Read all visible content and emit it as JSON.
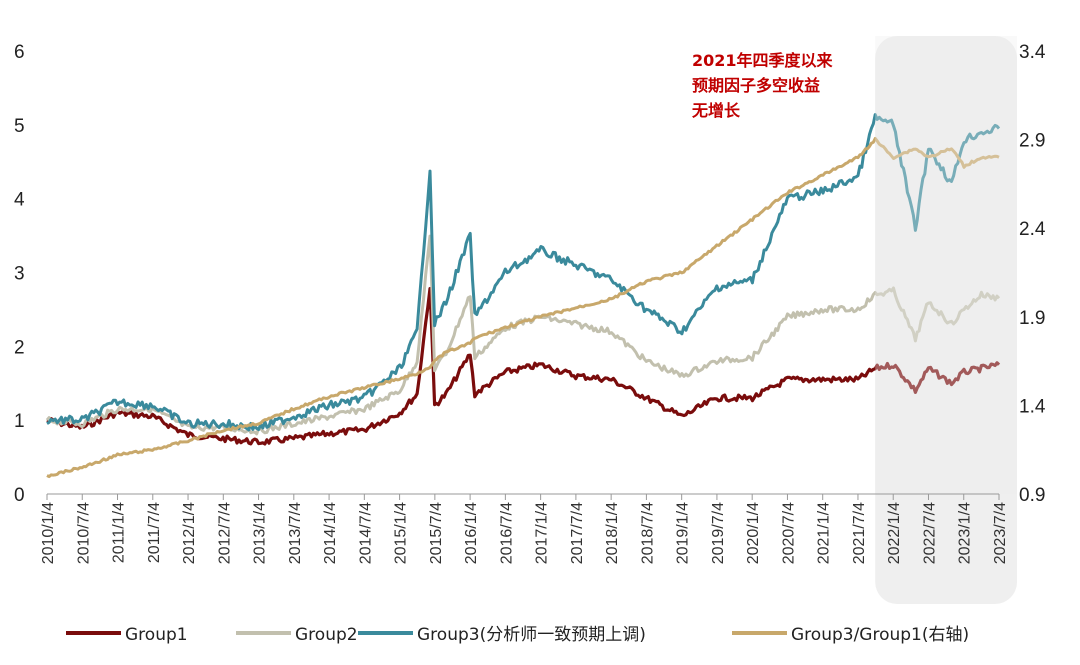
{
  "chart_data": {
    "type": "line",
    "title": "",
    "xlabel": "",
    "ylabel": "",
    "y_left": {
      "ylim": [
        0,
        6
      ],
      "ticks": [
        "0",
        "1",
        "2",
        "3",
        "4",
        "5",
        "6"
      ]
    },
    "y_right": {
      "ylim": [
        0.9,
        3.4
      ],
      "ticks": [
        "0.9",
        "1.4",
        "1.9",
        "2.4",
        "2.9",
        "3.4"
      ]
    },
    "x_tick_labels": [
      "2010/1/4",
      "2010/7/4",
      "2011/1/4",
      "2011/7/4",
      "2012/1/4",
      "2012/7/4",
      "2013/1/4",
      "2013/7/4",
      "2014/1/4",
      "2014/7/4",
      "2015/1/4",
      "2015/7/4",
      "2016/1/4",
      "2016/7/4",
      "2017/1/4",
      "2017/7/4",
      "2018/1/4",
      "2018/7/4",
      "2019/1/4",
      "2019/7/4",
      "2020/1/4",
      "2020/7/4",
      "2021/1/4",
      "2021/7/4",
      "2022/1/4",
      "2022/7/4",
      "2023/1/4",
      "2023/7/4"
    ],
    "x_start": "2010/1/4",
    "x_end": "2023/7/4",
    "highlight_region": {
      "from": "2021/10/1",
      "to": "2023/7/4",
      "color": "#efefef"
    },
    "annotation": [
      "2021年四季度以来",
      "预期因子多空收益",
      "无增长"
    ],
    "grid": false,
    "legend_position": "bottom",
    "series": [
      {
        "name": "Group1",
        "axis": "left",
        "color": "#7a0c0c",
        "x": [
          "2010/1/4",
          "2010/7/4",
          "2011/1/4",
          "2011/7/4",
          "2012/1/4",
          "2012/7/4",
          "2013/1/4",
          "2013/7/4",
          "2014/1/4",
          "2014/7/4",
          "2015/1/4",
          "2015/4/4",
          "2015/6/10",
          "2015/7/4",
          "2015/9/1",
          "2016/1/4",
          "2016/1/28",
          "2016/7/4",
          "2017/1/4",
          "2017/7/4",
          "2018/1/4",
          "2018/7/4",
          "2019/1/4",
          "2019/7/4",
          "2020/1/4",
          "2020/7/4",
          "2021/1/4",
          "2021/7/4",
          "2021/10/1",
          "2022/1/4",
          "2022/4/27",
          "2022/7/4",
          "2022/10/31",
          "2023/1/4",
          "2023/4/4",
          "2023/7/4"
        ],
        "values": [
          1.0,
          0.9,
          1.1,
          1.05,
          0.8,
          0.75,
          0.7,
          0.75,
          0.82,
          0.87,
          1.1,
          1.35,
          2.8,
          1.2,
          1.35,
          1.9,
          1.35,
          1.65,
          1.75,
          1.6,
          1.55,
          1.3,
          1.05,
          1.3,
          1.3,
          1.55,
          1.55,
          1.55,
          1.7,
          1.75,
          1.4,
          1.7,
          1.5,
          1.65,
          1.7,
          1.75
        ]
      },
      {
        "name": "Group2",
        "axis": "left",
        "color": "#c2c0ae",
        "x": [
          "2010/1/4",
          "2010/7/4",
          "2011/1/4",
          "2011/7/4",
          "2012/1/4",
          "2012/7/4",
          "2013/1/4",
          "2013/7/4",
          "2014/1/4",
          "2014/7/4",
          "2015/1/4",
          "2015/4/4",
          "2015/6/10",
          "2015/7/4",
          "2015/9/1",
          "2016/1/4",
          "2016/1/28",
          "2016/7/4",
          "2017/1/4",
          "2017/7/4",
          "2018/1/4",
          "2018/7/4",
          "2019/1/4",
          "2019/7/4",
          "2020/1/4",
          "2020/7/4",
          "2021/1/4",
          "2021/7/4",
          "2021/10/1",
          "2022/1/4",
          "2022/4/27",
          "2022/7/4",
          "2022/10/31",
          "2023/1/4",
          "2023/4/4",
          "2023/7/4"
        ],
        "values": [
          1.0,
          0.95,
          1.15,
          1.15,
          0.9,
          0.9,
          0.85,
          0.95,
          1.05,
          1.15,
          1.4,
          1.8,
          3.5,
          1.7,
          1.9,
          2.7,
          1.85,
          2.25,
          2.4,
          2.3,
          2.2,
          1.8,
          1.6,
          1.8,
          1.85,
          2.4,
          2.5,
          2.5,
          2.7,
          2.75,
          2.1,
          2.6,
          2.3,
          2.5,
          2.7,
          2.65
        ]
      },
      {
        "name": "Group3(分析师一致预期上调)",
        "axis": "left",
        "color": "#3a8a9c",
        "x": [
          "2010/1/4",
          "2010/7/4",
          "2011/1/4",
          "2011/7/4",
          "2012/1/4",
          "2012/7/4",
          "2013/1/4",
          "2013/7/4",
          "2014/1/4",
          "2014/7/4",
          "2015/1/4",
          "2015/4/4",
          "2015/6/10",
          "2015/7/4",
          "2015/9/1",
          "2016/1/4",
          "2016/1/28",
          "2016/7/4",
          "2017/1/4",
          "2017/7/4",
          "2018/1/4",
          "2018/7/4",
          "2019/1/4",
          "2019/7/4",
          "2020/1/4",
          "2020/7/4",
          "2021/1/4",
          "2021/7/4",
          "2021/10/1",
          "2022/1/4",
          "2022/4/27",
          "2022/7/4",
          "2022/10/31",
          "2023/1/4",
          "2023/4/4",
          "2023/7/4"
        ],
        "values": [
          1.0,
          1.0,
          1.25,
          1.2,
          0.95,
          0.95,
          0.9,
          1.05,
          1.2,
          1.3,
          1.7,
          2.2,
          4.4,
          2.3,
          2.6,
          3.5,
          2.4,
          3.0,
          3.3,
          3.1,
          2.9,
          2.5,
          2.2,
          2.8,
          2.9,
          4.0,
          4.1,
          4.3,
          5.1,
          5.0,
          3.6,
          4.7,
          4.2,
          4.8,
          4.9,
          4.95
        ]
      },
      {
        "name": "Group3/Group1(右轴)",
        "axis": "right",
        "color": "#c8a86b",
        "x": [
          "2010/1/4",
          "2010/7/4",
          "2011/1/4",
          "2011/7/4",
          "2012/1/4",
          "2012/7/4",
          "2013/1/4",
          "2013/7/4",
          "2014/1/4",
          "2014/7/4",
          "2015/1/4",
          "2015/4/4",
          "2015/6/10",
          "2015/7/4",
          "2015/9/1",
          "2016/1/4",
          "2016/1/28",
          "2016/7/4",
          "2017/1/4",
          "2017/7/4",
          "2018/1/4",
          "2018/7/4",
          "2019/1/4",
          "2019/7/4",
          "2020/1/4",
          "2020/7/4",
          "2021/1/4",
          "2021/7/4",
          "2021/10/1",
          "2022/1/4",
          "2022/4/27",
          "2022/7/4",
          "2022/10/31",
          "2023/1/4",
          "2023/4/4",
          "2023/7/4"
        ],
        "values": [
          1.0,
          1.05,
          1.12,
          1.15,
          1.2,
          1.26,
          1.3,
          1.38,
          1.45,
          1.5,
          1.55,
          1.58,
          1.62,
          1.65,
          1.7,
          1.75,
          1.78,
          1.84,
          1.9,
          1.95,
          2.0,
          2.1,
          2.15,
          2.3,
          2.45,
          2.6,
          2.7,
          2.8,
          2.9,
          2.8,
          2.85,
          2.8,
          2.85,
          2.75,
          2.8,
          2.8
        ]
      }
    ]
  }
}
